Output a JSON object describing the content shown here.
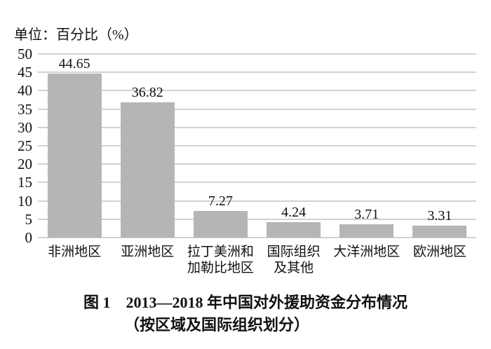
{
  "unit_label": "单位：百分比（%）",
  "caption": {
    "line1": "图 1　2013—2018 年中国对外援助资金分布情况",
    "line2": "（按区域及国际组织划分）"
  },
  "chart_data": {
    "type": "bar",
    "title": "图1 2013—2018年中国对外援助资金分布情况（按区域及国际组织划分）",
    "unit_label": "单位：百分比（%）",
    "categories": [
      "非洲地区",
      "亚洲地区",
      "拉丁美洲和\n加勒比地区",
      "国际组织\n及其他",
      "大洋洲地区",
      "欧洲地区"
    ],
    "values": [
      44.65,
      36.82,
      7.27,
      4.24,
      3.71,
      3.31
    ],
    "value_labels": [
      "44.65",
      "36.82",
      "7.27",
      "4.24",
      "3.71",
      "3.31"
    ],
    "xlabel": "",
    "ylabel": "单位：百分比（%）",
    "ylim": [
      0,
      50
    ],
    "ytick_step": 5,
    "yticks": [
      0,
      5,
      10,
      15,
      20,
      25,
      30,
      35,
      40,
      45,
      50
    ],
    "grid": true,
    "legend_position": "none",
    "bar_color": "#b5b5b5",
    "gridline_color": "#d2d2d2",
    "text_color": "#111111"
  }
}
